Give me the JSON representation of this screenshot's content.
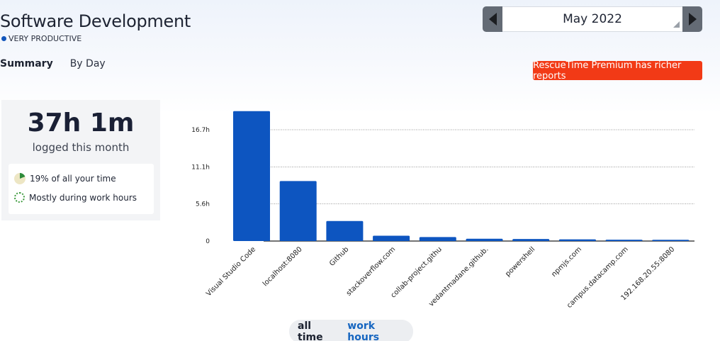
{
  "header": {
    "title": "Software Development",
    "subtitle": "VERY PRODUCTIVE",
    "productivity_color": "#1155bb"
  },
  "tabs": [
    {
      "label": "Summary",
      "active": true
    },
    {
      "label": "By Day",
      "active": false
    }
  ],
  "month_picker": {
    "selected": "May 2022",
    "prev_icon": "triangle-left-icon",
    "next_icon": "triangle-right-icon"
  },
  "premium_button": {
    "label": "RescueTime Premium has richer reports",
    "color": "#f23a16"
  },
  "summary": {
    "total": "37h 1m",
    "total_label": "logged this month",
    "share": "19% of all your time",
    "share_fraction": 0.19,
    "when": "Mostly during work hours"
  },
  "chart_data": {
    "type": "bar",
    "categories": [
      "Visual Studio Code",
      "localhost:8080",
      "Github",
      "stackoverflow.com",
      "collab-project.githu",
      "vedantmadane.github.",
      "powershell",
      "npmjs.com",
      "campus.datacamp.com",
      "192.168.20.55:8080"
    ],
    "values": [
      19.5,
      9.0,
      3.0,
      0.8,
      0.6,
      0.35,
      0.3,
      0.25,
      0.2,
      0.18
    ],
    "yticks": [
      0,
      5.6,
      11.1,
      16.7
    ],
    "ytick_labels": [
      "0",
      "5.6h",
      "11.1h",
      "16.7h"
    ],
    "ylim": [
      0,
      20
    ],
    "bar_color": "#0d55c0",
    "grid": true
  },
  "time_toggle": {
    "options": [
      {
        "label": "all time",
        "selected": true
      },
      {
        "label": "work hours",
        "selected": false
      }
    ]
  }
}
